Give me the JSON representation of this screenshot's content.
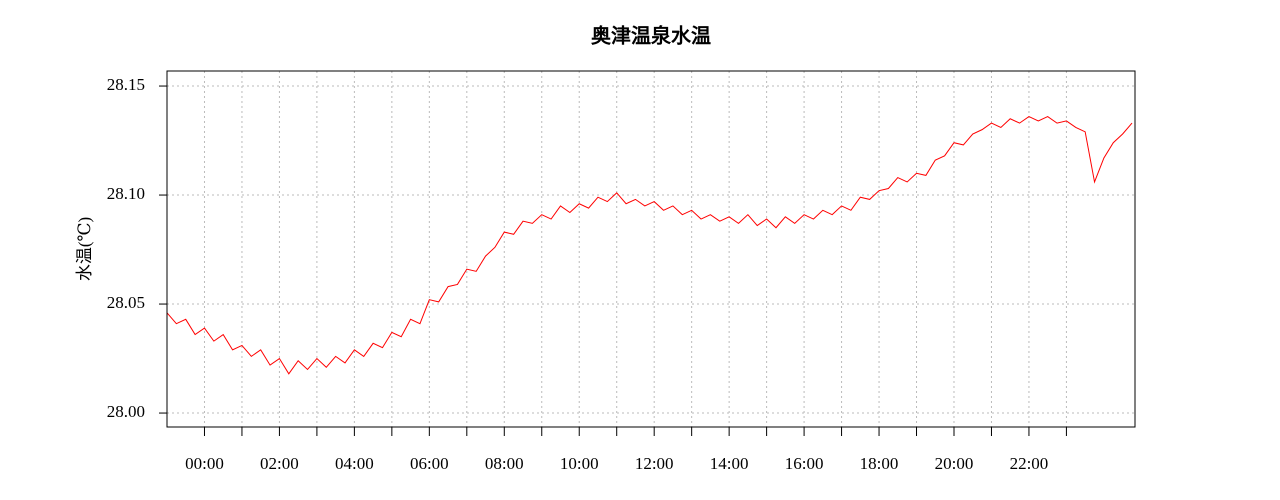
{
  "chart_data": {
    "type": "line",
    "title": "奥津温泉水温",
    "y_label": "水温(℃)",
    "xlim": [
      -1,
      24.83
    ],
    "xticks": [
      {
        "value": 0,
        "label": "00:00"
      },
      {
        "value": 2,
        "label": "02:00"
      },
      {
        "value": 4,
        "label": "04:00"
      },
      {
        "value": 6,
        "label": "06:00"
      },
      {
        "value": 8,
        "label": "08:00"
      },
      {
        "value": 10,
        "label": "10:00"
      },
      {
        "value": 12,
        "label": "12:00"
      },
      {
        "value": 14,
        "label": "14:00"
      },
      {
        "value": 16,
        "label": "16:00"
      },
      {
        "value": 18,
        "label": "18:00"
      },
      {
        "value": 20,
        "label": "20:00"
      },
      {
        "value": 22,
        "label": "22:00"
      }
    ],
    "xminor_ticks": [
      1,
      3,
      5,
      7,
      9,
      11,
      13,
      15,
      17,
      19,
      21,
      23
    ],
    "ylim": [
      27.9936,
      28.1569
    ],
    "yticks": [
      {
        "value": 28.0,
        "label": "28.00"
      },
      28.05,
      {
        "value": 28.1,
        "label": "28.10"
      },
      28.15
    ],
    "grid": true,
    "x": [
      -1,
      -0.75,
      -0.5,
      -0.25,
      0,
      0.25,
      0.5,
      0.75,
      1,
      1.25,
      1.5,
      1.75,
      2,
      2.25,
      2.5,
      2.75,
      3,
      3.25,
      3.5,
      3.75,
      4,
      4.25,
      4.5,
      4.75,
      5,
      5.25,
      5.5,
      5.75,
      6,
      6.25,
      6.5,
      6.75,
      7,
      7.25,
      7.5,
      7.75,
      8,
      8.25,
      8.5,
      8.75,
      9,
      9.25,
      9.5,
      9.75,
      10,
      10.25,
      10.5,
      10.75,
      11,
      11.25,
      11.5,
      11.75,
      12,
      12.25,
      12.5,
      12.75,
      13,
      13.25,
      13.5,
      13.75,
      14,
      14.25,
      14.5,
      14.75,
      15,
      15.25,
      15.5,
      15.75,
      16,
      16.25,
      16.5,
      16.75,
      17,
      17.25,
      17.5,
      17.75,
      18,
      18.25,
      18.5,
      18.75,
      19,
      19.25,
      19.5,
      19.75,
      20,
      20.25,
      20.5,
      20.75,
      21,
      21.25,
      21.5,
      21.75,
      22,
      22.25,
      22.5,
      22.75,
      23,
      23.25,
      23.5,
      23.75,
      24,
      24.25,
      24.5,
      24.75
    ],
    "series": [
      {
        "color": "#ff0000",
        "values": [
          28.046,
          28.041,
          28.043,
          28.036,
          28.039,
          28.033,
          28.036,
          28.029,
          28.031,
          28.026,
          28.029,
          28.022,
          28.025,
          28.018,
          28.024,
          28.02,
          28.025,
          28.021,
          28.026,
          28.023,
          28.029,
          28.026,
          28.032,
          28.03,
          28.037,
          28.035,
          28.043,
          28.041,
          28.052,
          28.051,
          28.058,
          28.059,
          28.066,
          28.065,
          28.072,
          28.076,
          28.083,
          28.082,
          28.088,
          28.087,
          28.091,
          28.089,
          28.095,
          28.092,
          28.096,
          28.094,
          28.099,
          28.097,
          28.101,
          28.096,
          28.098,
          28.095,
          28.097,
          28.093,
          28.095,
          28.091,
          28.093,
          28.089,
          28.091,
          28.088,
          28.09,
          28.087,
          28.091,
          28.086,
          28.089,
          28.085,
          28.09,
          28.087,
          28.091,
          28.089,
          28.093,
          28.091,
          28.095,
          28.093,
          28.099,
          28.098,
          28.102,
          28.103,
          28.108,
          28.106,
          28.11,
          28.109,
          28.116,
          28.118,
          28.124,
          28.123,
          28.128,
          28.13,
          28.133,
          28.131,
          28.135,
          28.133,
          28.136,
          28.134,
          28.136,
          28.133,
          28.134,
          28.131,
          28.129,
          28.106,
          28.117,
          28.124,
          28.128,
          28.133
        ]
      }
    ]
  }
}
